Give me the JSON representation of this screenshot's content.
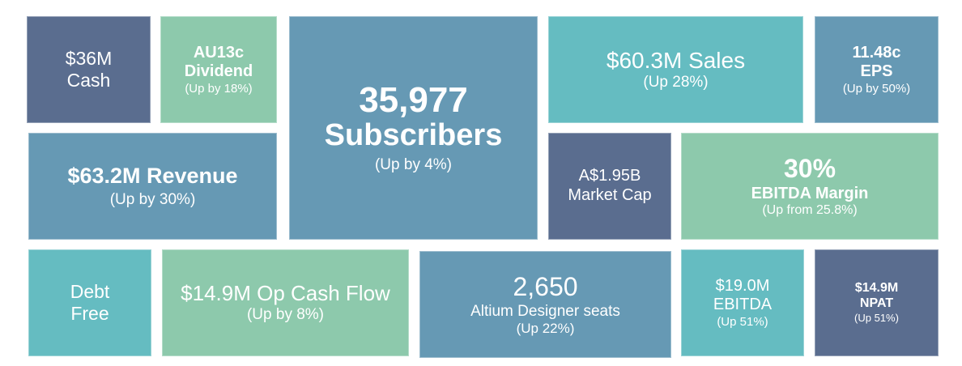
{
  "colors": {
    "navy": "#5a6d8f",
    "steel_blue": "#6699b4",
    "teal": "#65bcc1",
    "mint": "#8dc9ac"
  },
  "tiles": {
    "cash": {
      "line1": "$36M",
      "line2": "Cash"
    },
    "dividend": {
      "value": "AU13c",
      "label": "Dividend",
      "change": "(Up by 18%)"
    },
    "subscribers": {
      "value": "35,977",
      "label": "Subscribers",
      "change": "(Up by 4%)"
    },
    "sales": {
      "value": "$60.3M Sales",
      "change": "(Up 28%)"
    },
    "eps": {
      "value": "11.48c",
      "label": "EPS",
      "change": "(Up by 50%)"
    },
    "revenue": {
      "value": "$63.2M Revenue",
      "change": "(Up by 30%)"
    },
    "market_cap": {
      "value": "A$1.95B",
      "label": "Market Cap"
    },
    "ebitda_margin": {
      "value": "30%",
      "label": "EBITDA Margin",
      "change": "(Up from 25.8%)"
    },
    "debt_free": {
      "line1": "Debt",
      "line2": "Free"
    },
    "op_cash_flow": {
      "value": "$14.9M Op Cash Flow",
      "change": "(Up by 8%)"
    },
    "altium_seats": {
      "value": "2,650",
      "label": "Altium Designer seats",
      "change": "(Up 22%)"
    },
    "ebitda": {
      "value": "$19.0M",
      "label": "EBITDA",
      "change": "(Up 51%)"
    },
    "npat": {
      "value": "$14.9M",
      "label": "NPAT",
      "change": "(Up 51%)"
    }
  }
}
